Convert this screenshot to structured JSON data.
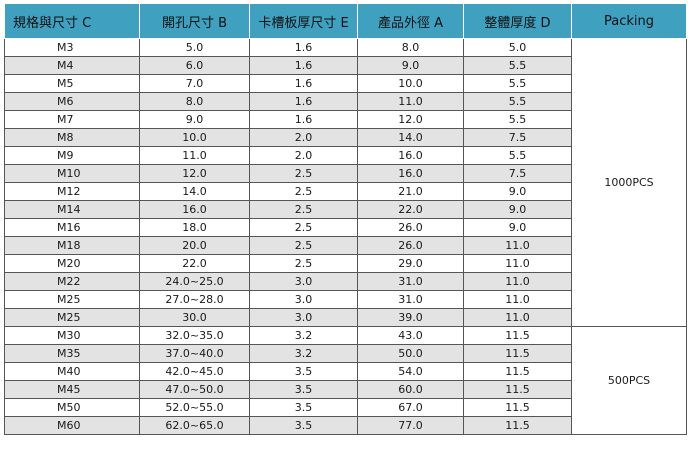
{
  "headers": [
    "規格與尺寸 C",
    "開孔尺寸 B",
    "卡槽板厚尺寸 E",
    "產品外徑 A",
    "整體厚度 D",
    "Packing"
  ],
  "rows": [
    [
      "M3",
      "5.0",
      "1.6",
      "8.0",
      "5.0"
    ],
    [
      "M4",
      "6.0",
      "1.6",
      "9.0",
      "5.5"
    ],
    [
      "M5",
      "7.0",
      "1.6",
      "10.0",
      "5.5"
    ],
    [
      "M6",
      "8.0",
      "1.6",
      "11.0",
      "5.5"
    ],
    [
      "M7",
      "9.0",
      "1.6",
      "12.0",
      "5.5"
    ],
    [
      "M8",
      "10.0",
      "2.0",
      "14.0",
      "7.5"
    ],
    [
      "M9",
      "11.0",
      "2.0",
      "16.0",
      "5.5"
    ],
    [
      "M10",
      "12.0",
      "2.5",
      "16.0",
      "7.5"
    ],
    [
      "M12",
      "14.0",
      "2.5",
      "21.0",
      "9.0"
    ],
    [
      "M14",
      "16.0",
      "2.5",
      "22.0",
      "9.0"
    ],
    [
      "M16",
      "18.0",
      "2.5",
      "26.0",
      "9.0"
    ],
    [
      "M18",
      "20.0",
      "2.5",
      "26.0",
      "11.0"
    ],
    [
      "M20",
      "22.0",
      "2.5",
      "29.0",
      "11.0"
    ],
    [
      "M22",
      "24.0~25.0",
      "3.0",
      "31.0",
      "11.0"
    ],
    [
      "M25",
      "27.0~28.0",
      "3.0",
      "31.0",
      "11.0"
    ],
    [
      "M25",
      "30.0",
      "3.0",
      "39.0",
      "11.0"
    ],
    [
      "M30",
      "32.0~35.0",
      "3.2",
      "43.0",
      "11.5"
    ],
    [
      "M35",
      "37.0~40.0",
      "3.2",
      "50.0",
      "11.5"
    ],
    [
      "M40",
      "42.0~45.0",
      "3.5",
      "54.0",
      "11.5"
    ],
    [
      "M45",
      "47.0~50.0",
      "3.5",
      "60.0",
      "11.5"
    ],
    [
      "M50",
      "52.0~55.0",
      "3.5",
      "67.0",
      "11.5"
    ],
    [
      "M60",
      "62.0~65.0",
      "3.5",
      "77.0",
      "11.5"
    ]
  ],
  "packing": [
    {
      "label": "1000PCS",
      "rows": 16
    },
    {
      "label": "500PCS",
      "rows": 6
    }
  ]
}
